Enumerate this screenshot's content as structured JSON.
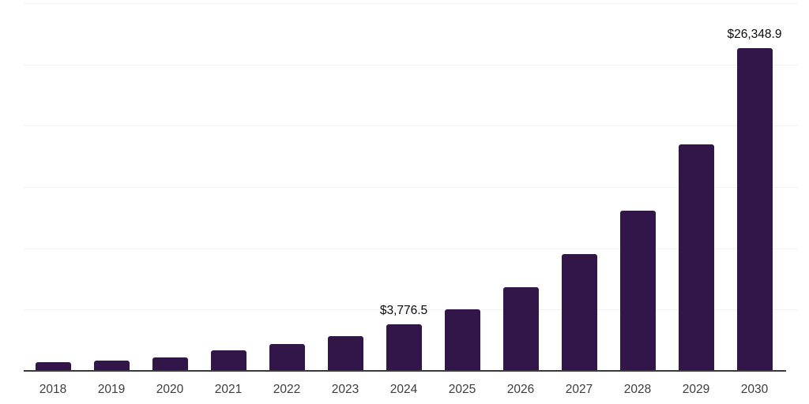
{
  "chart_data": {
    "type": "bar",
    "title": "",
    "xlabel": "",
    "ylabel": "",
    "categories": [
      "2018",
      "2019",
      "2020",
      "2021",
      "2022",
      "2023",
      "2024",
      "2025",
      "2026",
      "2027",
      "2028",
      "2029",
      "2030"
    ],
    "values": [
      690,
      820,
      1110,
      1650,
      2190,
      2810,
      3776.5,
      5040,
      6820,
      9500,
      13080,
      18490,
      26348.9
    ],
    "point_labels": {
      "2024": "$3,776.5",
      "2030": "$26,348.9"
    },
    "values_note": "Only the 2024 and 2030 bars carry visible data labels; remaining values are estimated from bar heights against 5,000-unit gridlines",
    "ylim": [
      0,
      30000
    ],
    "gridline_interval": 5000,
    "grid": "horizontal",
    "legend": "none",
    "bar_color": "#321549"
  },
  "colors": {
    "background": "#ffffff",
    "bar": "#321549",
    "axis_line": "#3a3a3a",
    "gridline": "#f2f2f2",
    "tick_label": "#3d3d3d",
    "value_label": "#0a0a0a"
  }
}
